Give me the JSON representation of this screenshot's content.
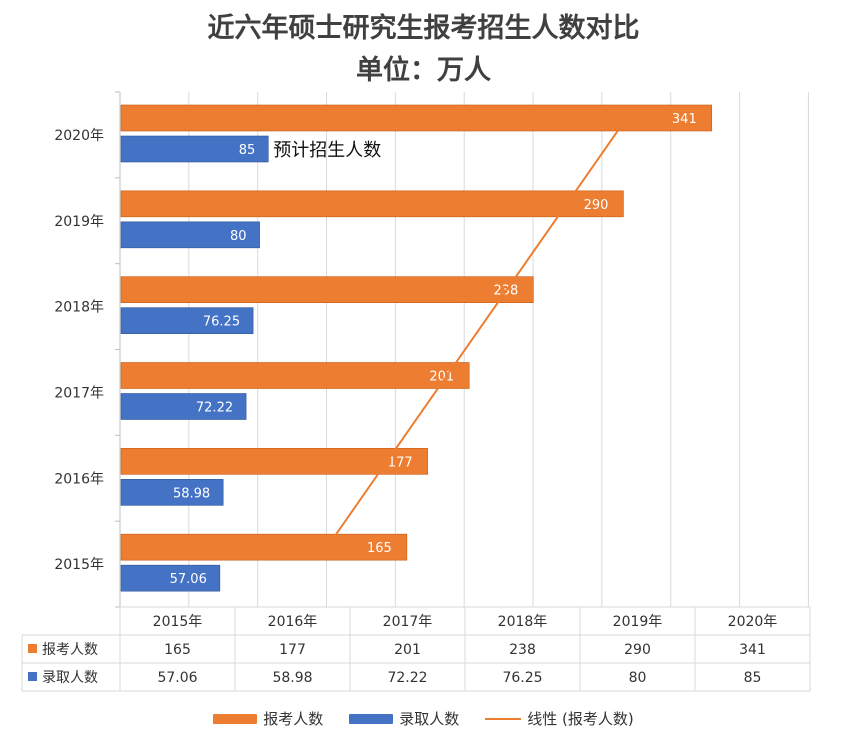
{
  "chart_data": {
    "type": "bar",
    "orientation": "horizontal",
    "title": "近六年硕士研究生报考招生人数对比",
    "subtitle": "单位：万人",
    "categories": [
      "2015年",
      "2016年",
      "2017年",
      "2018年",
      "2019年",
      "2020年"
    ],
    "series": [
      {
        "name": "报考人数",
        "color": "#ED7D31",
        "values": [
          165,
          177,
          201,
          238,
          290,
          341
        ]
      },
      {
        "name": "录取人数",
        "color": "#4472C4",
        "values": [
          57.06,
          58.98,
          72.22,
          76.25,
          80,
          85
        ]
      }
    ],
    "value_labels": {
      "报考人数": [
        "165",
        "177",
        "201",
        "238",
        "290",
        "341"
      ],
      "录取人数": [
        "57.06",
        "58.98",
        "72.22",
        "76.25",
        "80",
        "85"
      ]
    },
    "trendline": {
      "name": "线性 (报考人数)",
      "color": "#ED7D31"
    },
    "annotation": "预计招生人数",
    "data_table": {
      "columns": [
        "2015年",
        "2016年",
        "2017年",
        "2018年",
        "2019年",
        "2020年"
      ],
      "rows": [
        {
          "label": "报考人数",
          "values": [
            "165",
            "177",
            "201",
            "238",
            "290",
            "341"
          ]
        },
        {
          "label": "录取人数",
          "values": [
            "57.06",
            "58.98",
            "72.22",
            "76.25",
            "80",
            "85"
          ]
        }
      ]
    },
    "legend": [
      "报考人数",
      "录取人数",
      "线性 (报考人数)"
    ],
    "legend_position": "bottom",
    "grid": true
  }
}
